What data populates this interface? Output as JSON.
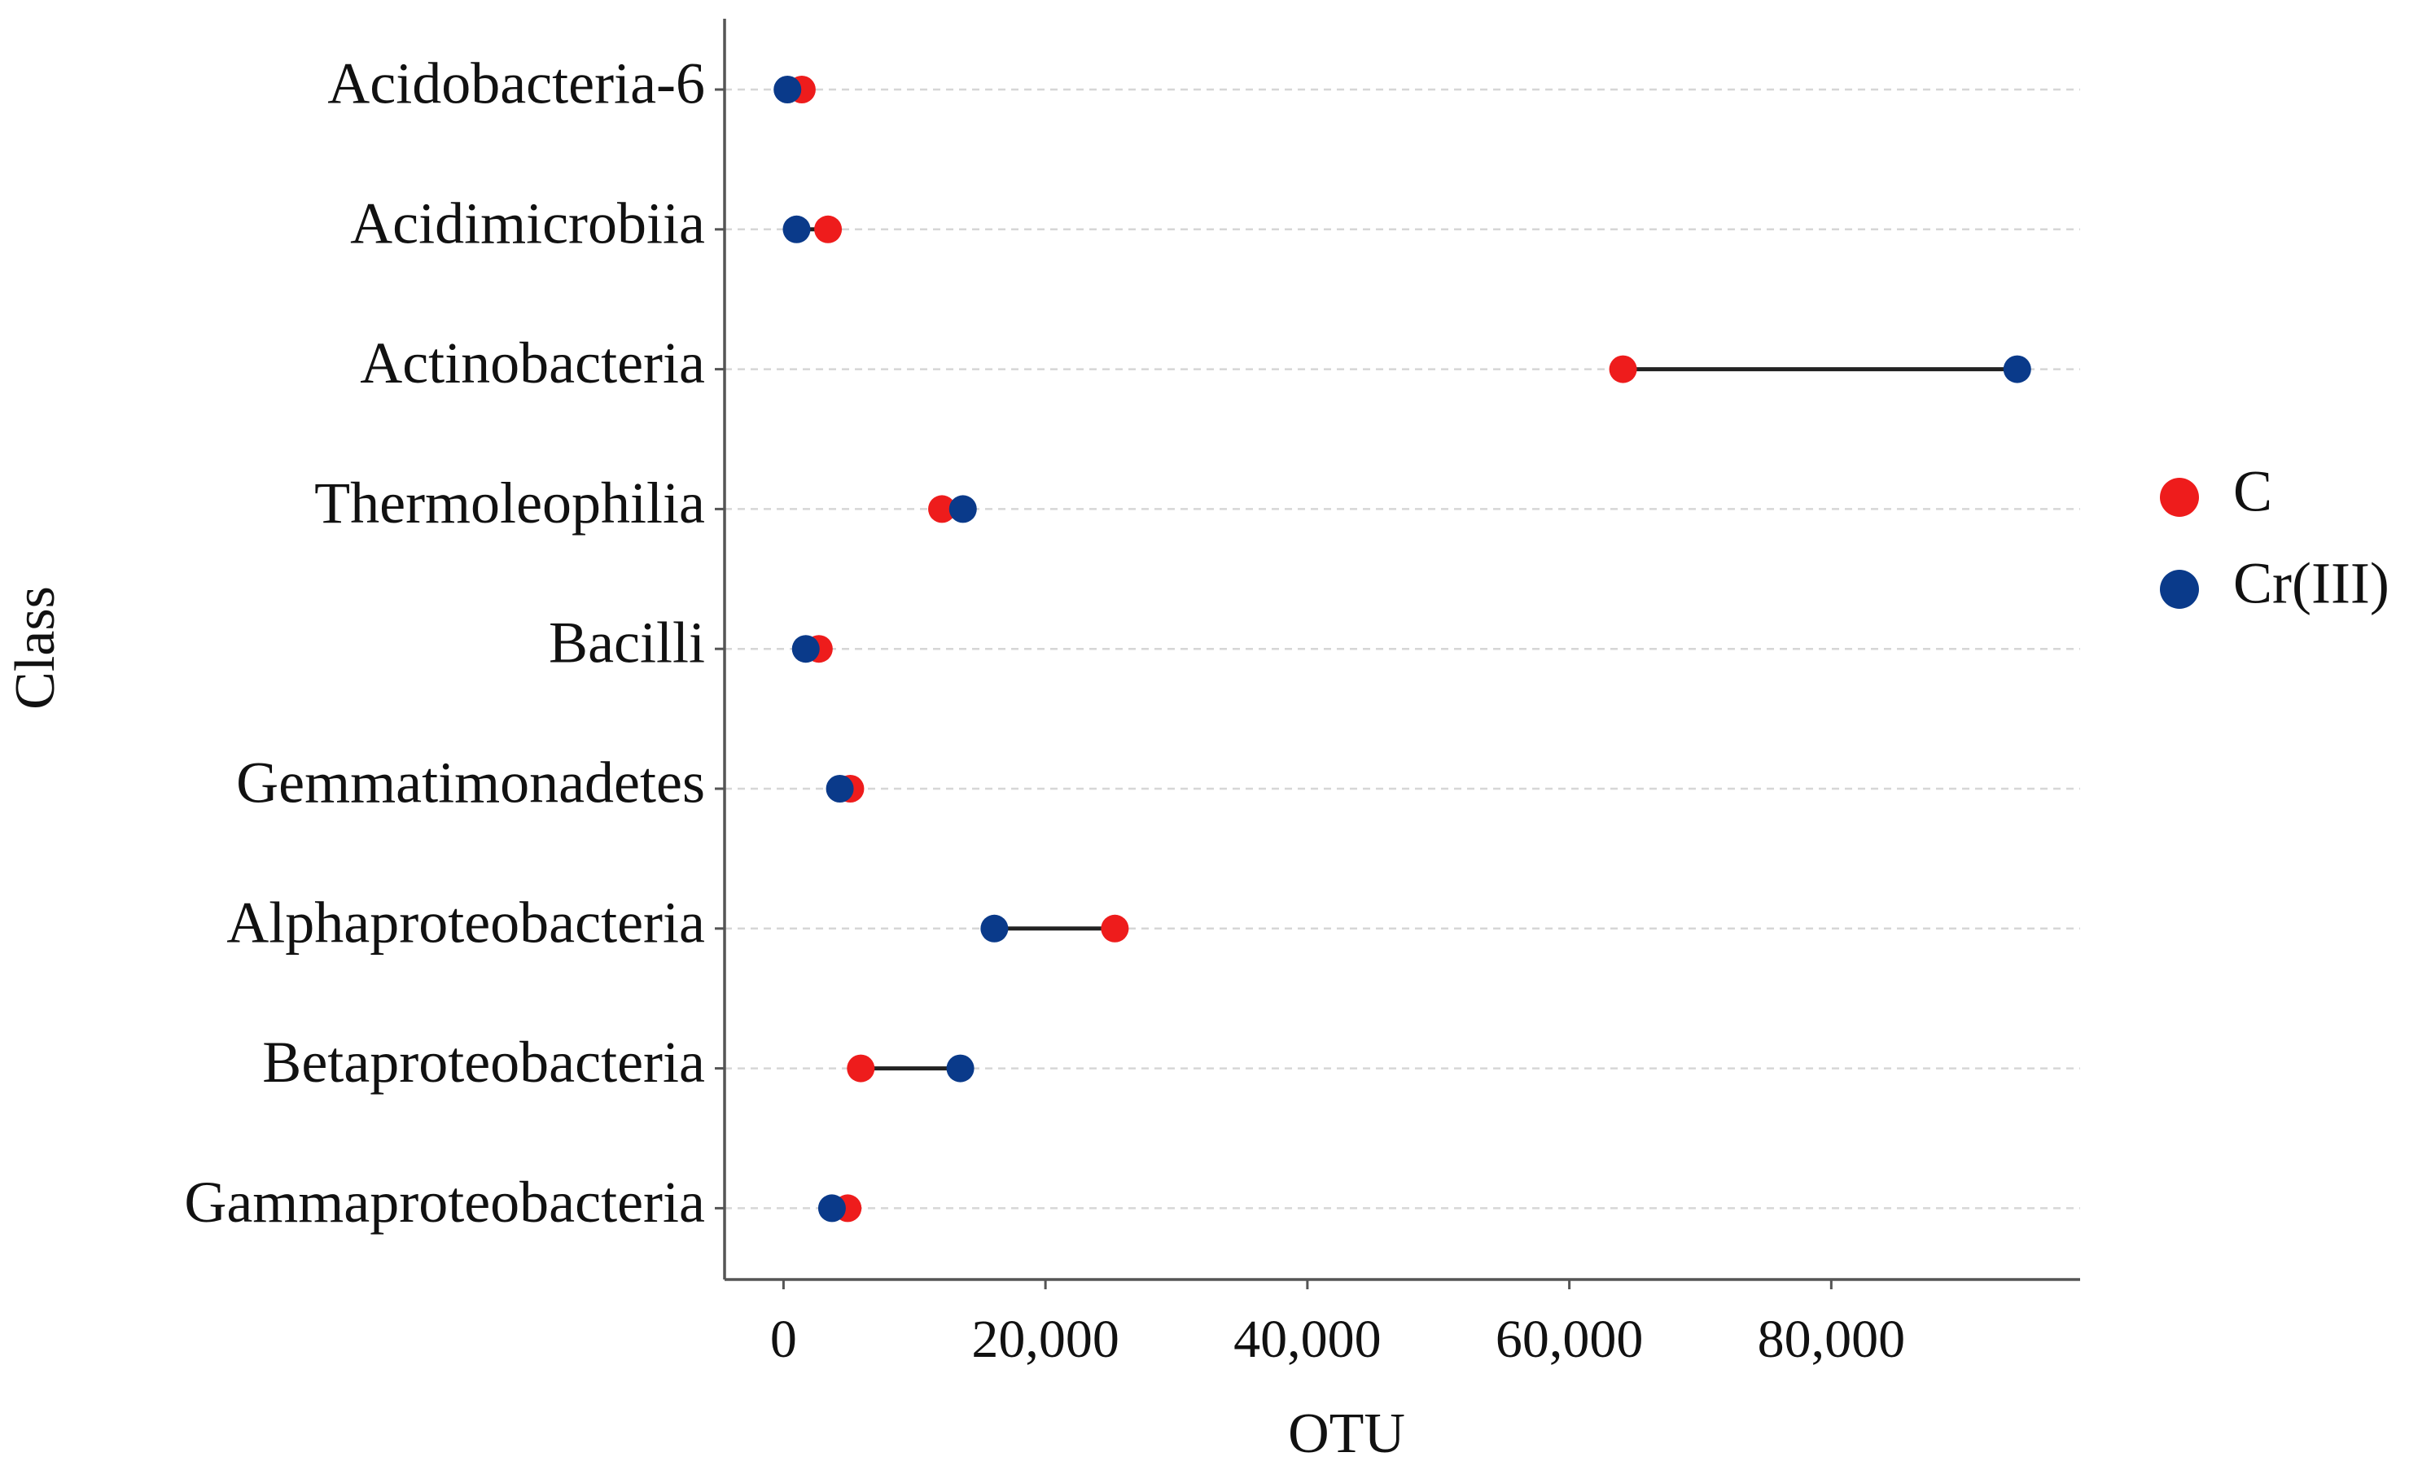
{
  "chart_data": {
    "type": "dumbbell",
    "xlabel": "OTU",
    "ylabel": "Class",
    "categories": [
      "Acidobacteria-6",
      "Acidimicrobiia",
      "Actinobacteria",
      "Thermoleophilia",
      "Bacilli",
      "Gemmatimonadetes",
      "Alphaproteobacteria",
      "Betaproteobacteria",
      "Gammaproteobacteria"
    ],
    "series": [
      {
        "name": "C",
        "color": "#ee1c1c",
        "values": [
          1400,
          3400,
          64100,
          12100,
          2700,
          5100,
          25300,
          5900,
          4900
        ]
      },
      {
        "name": "Cr(III)",
        "color": "#0a3a8a",
        "values": [
          300,
          1000,
          94200,
          13700,
          1700,
          4300,
          16100,
          13500,
          3700
        ]
      }
    ],
    "xlim": [
      -4500,
      99000
    ],
    "xticks": [
      0,
      {
        "value": 20000,
        "label": "20,000"
      },
      {
        "value": 40000,
        "label": "40,000"
      },
      {
        "value": 60000,
        "label": "60,000"
      },
      {
        "value": 80000,
        "label": "80,000"
      }
    ],
    "grid": true,
    "legend": "right"
  }
}
